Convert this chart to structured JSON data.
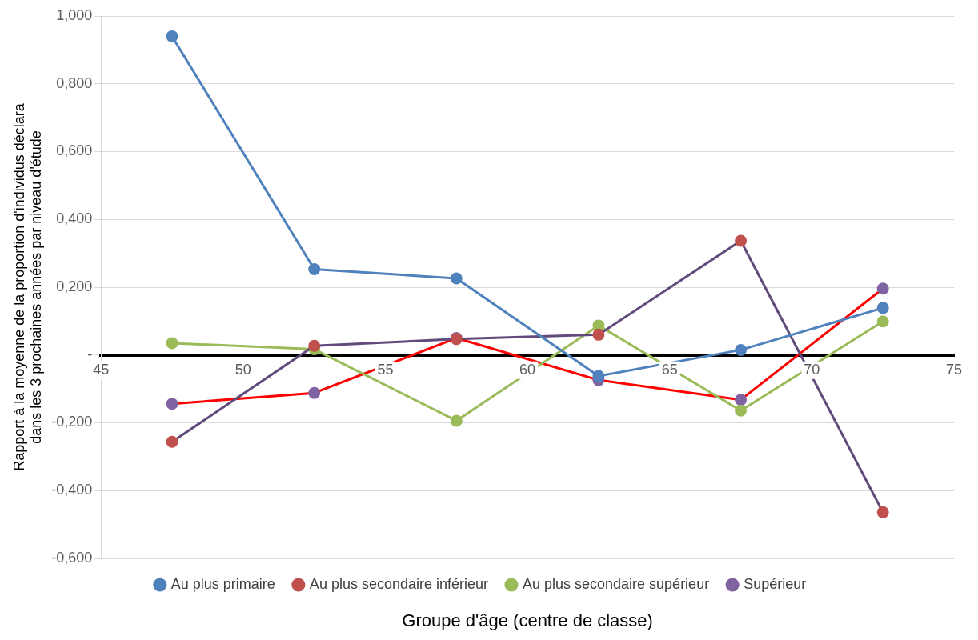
{
  "chart_data": {
    "type": "line",
    "xlabel": "Groupe d'âge (centre de classe)",
    "ylabel": "Rapport à la moyenne de la proportion d'individus déclara\ndans les 3 prochaines années par niveau d'étude",
    "x": [
      47.5,
      52.5,
      57.5,
      62.5,
      67.5,
      72.5
    ],
    "series": [
      {
        "name": "Au plus primaire",
        "color": "#4f81bd",
        "values": [
          0.94,
          0.253,
          0.226,
          -0.062,
          0.015,
          0.139
        ]
      },
      {
        "name": "Au plus secondaire inférieur",
        "color": "#604a7b",
        "colors": [
          "#c0504d",
          "#c0504d",
          "#c0504d",
          "#c0504d",
          "#c0504d",
          "#c0504d"
        ],
        "values": [
          -0.256,
          0.027,
          0.047,
          0.06,
          0.337,
          -0.464
        ]
      },
      {
        "name": "Au plus secondaire supérieur",
        "color": "#9bbb59",
        "values": [
          0.035,
          0.017,
          -0.194,
          0.087,
          -0.164,
          0.099
        ]
      },
      {
        "name": "Supérieur",
        "color": "#ff0000",
        "colors": [
          "#8064a2",
          "#8064a2",
          "#8064a2",
          "#8064a2",
          "#8064a2",
          "#8064a2"
        ],
        "values": [
          -0.144,
          -0.112,
          0.05,
          -0.074,
          -0.132,
          0.196
        ]
      }
    ],
    "xlim": [
      45,
      75
    ],
    "xticks": [
      45,
      50,
      55,
      60,
      65,
      70,
      75
    ],
    "ylim": [
      -0.6,
      1.0
    ],
    "yticks": [
      {
        "value": -0.6,
        "label": "-0,600"
      },
      {
        "value": -0.4,
        "label": "-0,400"
      },
      {
        "value": -0.2,
        "label": "-0,200"
      },
      {
        "value": 0,
        "label": "-"
      },
      {
        "value": 0.2,
        "label": "0,200"
      },
      {
        "value": 0.4,
        "label": "0,400"
      },
      {
        "value": 0.6,
        "label": "0,600"
      },
      {
        "value": 0.8,
        "label": "0,800"
      },
      {
        "value": 1.0,
        "label": "1,000"
      }
    ],
    "grid": "y",
    "legend": "bottom",
    "marker": "circle",
    "line_style": "solid"
  }
}
